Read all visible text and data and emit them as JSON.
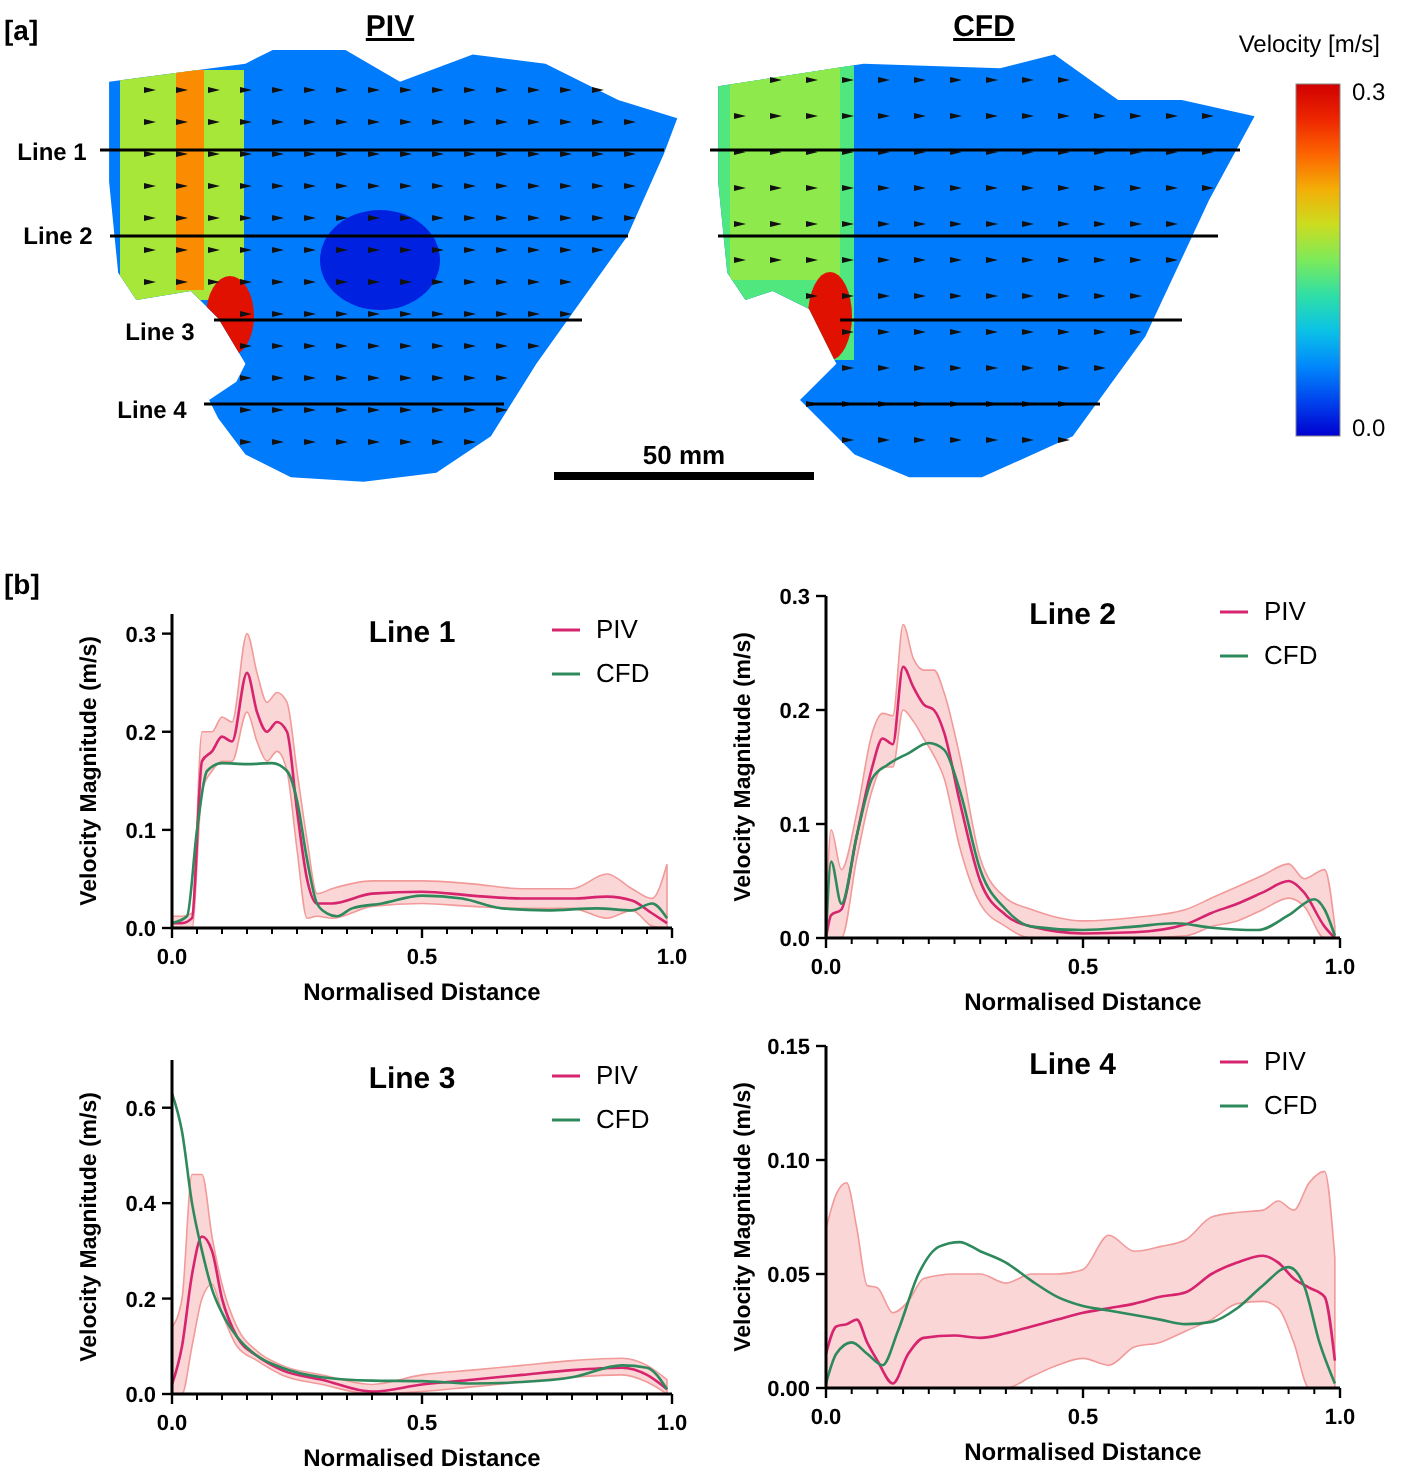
{
  "chart_data": [
    {
      "type": "other",
      "annotations": [
        "[a]",
        "PIV",
        "CFD",
        "Line 1",
        "Line 2",
        "Line 3",
        "Line 4",
        "50 mm",
        "Velocity [m/s]",
        "0.3",
        "0.0"
      ]
    },
    {
      "type": "line",
      "title": "Line 1",
      "xlabel": "Normalised Distance",
      "ylabel": "Velocity Magnitude (m/s)",
      "annotations": [
        "[b]"
      ],
      "legend": "top right",
      "xlim": [
        0,
        1
      ],
      "ylim": [
        0,
        0.32
      ],
      "xticks": [
        {
          "value": 0,
          "label": "0.0"
        },
        {
          "value": 0.5,
          "label": "0.5"
        },
        {
          "value": 1,
          "label": "1.0"
        }
      ],
      "yticks": [
        {
          "value": 0,
          "label": "0.0"
        },
        0.1,
        0.2,
        0.3
      ],
      "series": [
        {
          "name": "PIV",
          "color": "#d6246e",
          "x": [
            0,
            0.02,
            0.04,
            0.06,
            0.08,
            0.1,
            0.12,
            0.15,
            0.17,
            0.19,
            0.21,
            0.23,
            0.25,
            0.27,
            0.29,
            0.32,
            0.4,
            0.5,
            0.6,
            0.7,
            0.8,
            0.87,
            0.92,
            0.96,
            0.99
          ],
          "values": [
            0.005,
            0.005,
            0.01,
            0.17,
            0.18,
            0.195,
            0.19,
            0.26,
            0.22,
            0.2,
            0.21,
            0.2,
            0.12,
            0.05,
            0.025,
            0.025,
            0.035,
            0.037,
            0.033,
            0.03,
            0.03,
            0.032,
            0.028,
            0.015,
            0.005
          ],
          "upper": [
            0.012,
            0.012,
            0.015,
            0.2,
            0.2,
            0.215,
            0.21,
            0.3,
            0.26,
            0.23,
            0.24,
            0.23,
            0.16,
            0.09,
            0.035,
            0.04,
            0.048,
            0.048,
            0.045,
            0.04,
            0.04,
            0.055,
            0.04,
            0.03,
            0.065
          ],
          "lower": [
            0,
            0,
            0,
            0.14,
            0.16,
            0.17,
            0.17,
            0.22,
            0.19,
            0.17,
            0.18,
            0.16,
            0.08,
            0.01,
            0.012,
            0.01,
            0.022,
            0.025,
            0.022,
            0.02,
            0.02,
            0.01,
            0.018,
            0.002,
            0
          ]
        },
        {
          "name": "CFD",
          "color": "#2e8a5c",
          "x": [
            0,
            0.03,
            0.05,
            0.07,
            0.1,
            0.15,
            0.2,
            0.23,
            0.25,
            0.27,
            0.29,
            0.31,
            0.33,
            0.36,
            0.42,
            0.5,
            0.58,
            0.66,
            0.75,
            0.85,
            0.92,
            0.96,
            0.99
          ],
          "values": [
            0.005,
            0.012,
            0.1,
            0.16,
            0.168,
            0.167,
            0.168,
            0.16,
            0.13,
            0.07,
            0.025,
            0.015,
            0.012,
            0.02,
            0.025,
            0.033,
            0.03,
            0.02,
            0.018,
            0.02,
            0.018,
            0.025,
            0.01
          ]
        }
      ]
    },
    {
      "type": "line",
      "title": "Line 2",
      "xlabel": "Normalised Distance",
      "ylabel": "Velocity Magnitude (m/s)",
      "legend": "top right",
      "xlim": [
        0,
        1
      ],
      "ylim": [
        0,
        0.3
      ],
      "xticks": [
        {
          "value": 0,
          "label": "0.0"
        },
        {
          "value": 0.5,
          "label": "0.5"
        },
        {
          "value": 1,
          "label": "1.0"
        }
      ],
      "yticks": [
        {
          "value": 0,
          "label": "0.0"
        },
        0.1,
        0.2,
        0.3
      ],
      "series": [
        {
          "name": "PIV",
          "color": "#d6246e",
          "x": [
            0,
            0.01,
            0.03,
            0.06,
            0.09,
            0.11,
            0.13,
            0.15,
            0.17,
            0.19,
            0.21,
            0.23,
            0.26,
            0.3,
            0.35,
            0.4,
            0.5,
            0.6,
            0.7,
            0.75,
            0.8,
            0.85,
            0.9,
            0.93,
            0.97,
            0.99
          ],
          "values": [
            0,
            0.02,
            0.025,
            0.09,
            0.15,
            0.175,
            0.17,
            0.238,
            0.22,
            0.205,
            0.2,
            0.18,
            0.12,
            0.05,
            0.02,
            0.01,
            0.004,
            0.005,
            0.012,
            0.022,
            0.03,
            0.04,
            0.05,
            0.04,
            0.01,
            0
          ],
          "upper": [
            0.02,
            0.095,
            0.06,
            0.11,
            0.18,
            0.197,
            0.195,
            0.275,
            0.245,
            0.235,
            0.235,
            0.215,
            0.16,
            0.07,
            0.035,
            0.025,
            0.015,
            0.018,
            0.025,
            0.035,
            0.045,
            0.055,
            0.065,
            0.052,
            0.06,
            0.01
          ],
          "lower": [
            0,
            0,
            0,
            0.07,
            0.13,
            0.15,
            0.15,
            0.2,
            0.19,
            0.175,
            0.16,
            0.14,
            0.08,
            0.03,
            0.01,
            0,
            0,
            0,
            0.002,
            0.01,
            0.015,
            0.025,
            0.035,
            0.028,
            0,
            0
          ]
        },
        {
          "name": "CFD",
          "color": "#2e8a5c",
          "x": [
            0,
            0.01,
            0.03,
            0.06,
            0.09,
            0.12,
            0.16,
            0.2,
            0.23,
            0.26,
            0.3,
            0.35,
            0.4,
            0.5,
            0.6,
            0.68,
            0.75,
            0.84,
            0.9,
            0.95,
            0.97,
            0.99
          ],
          "values": [
            0,
            0.067,
            0.03,
            0.09,
            0.14,
            0.152,
            0.162,
            0.171,
            0.165,
            0.13,
            0.06,
            0.025,
            0.01,
            0.007,
            0.01,
            0.013,
            0.009,
            0.007,
            0.02,
            0.034,
            0.025,
            0.002
          ]
        }
      ]
    },
    {
      "type": "line",
      "title": "Line 3",
      "xlabel": "Normalised Distance",
      "ylabel": "Velocity Magnitude (m/s)",
      "legend": "top right",
      "xlim": [
        0,
        1
      ],
      "ylim": [
        0,
        0.7
      ],
      "xticks": [
        {
          "value": 0,
          "label": "0.0"
        },
        {
          "value": 0.5,
          "label": "0.5"
        },
        {
          "value": 1,
          "label": "1.0"
        }
      ],
      "yticks": [
        {
          "value": 0,
          "label": "0.0"
        },
        0.2,
        0.4,
        0.6
      ],
      "series": [
        {
          "name": "PIV",
          "color": "#d6246e",
          "x": [
            0,
            0.02,
            0.04,
            0.06,
            0.08,
            0.1,
            0.13,
            0.17,
            0.22,
            0.3,
            0.4,
            0.5,
            0.6,
            0.7,
            0.8,
            0.9,
            0.95,
            0.99
          ],
          "values": [
            0.02,
            0.1,
            0.25,
            0.33,
            0.3,
            0.2,
            0.12,
            0.08,
            0.05,
            0.03,
            0.005,
            0.02,
            0.03,
            0.04,
            0.05,
            0.055,
            0.04,
            0.01
          ],
          "upper": [
            0.14,
            0.2,
            0.46,
            0.46,
            0.33,
            0.23,
            0.14,
            0.09,
            0.06,
            0.04,
            0.02,
            0.04,
            0.05,
            0.06,
            0.07,
            0.075,
            0.06,
            0.03
          ],
          "lower": [
            0,
            0,
            0.1,
            0.2,
            0.23,
            0.17,
            0.1,
            0.07,
            0.04,
            0.02,
            0,
            0.005,
            0.015,
            0.025,
            0.035,
            0.04,
            0.025,
            0
          ]
        },
        {
          "name": "CFD",
          "color": "#2e8a5c",
          "x": [
            0,
            0.02,
            0.04,
            0.06,
            0.08,
            0.1,
            0.13,
            0.17,
            0.22,
            0.3,
            0.4,
            0.5,
            0.6,
            0.7,
            0.8,
            0.9,
            0.95,
            0.99
          ],
          "values": [
            0.63,
            0.55,
            0.4,
            0.3,
            0.22,
            0.17,
            0.12,
            0.08,
            0.055,
            0.035,
            0.028,
            0.027,
            0.022,
            0.025,
            0.035,
            0.06,
            0.055,
            0.01
          ]
        }
      ]
    },
    {
      "type": "line",
      "title": "Line 4",
      "xlabel": "Normalised Distance",
      "ylabel": "Velocity Magnitude (m/s)",
      "legend": "top right",
      "xlim": [
        0,
        1
      ],
      "ylim": [
        0,
        0.15
      ],
      "xticks": [
        {
          "value": 0,
          "label": "0.0"
        },
        {
          "value": 0.5,
          "label": "0.5"
        },
        {
          "value": 1,
          "label": "1.0"
        }
      ],
      "yticks": [
        {
          "value": 0,
          "label": "0.00"
        },
        {
          "value": 0.05,
          "label": "0.05"
        },
        {
          "value": 0.1,
          "label": "0.10"
        },
        {
          "value": 0.15,
          "label": "0.15"
        }
      ],
      "series": [
        {
          "name": "PIV",
          "color": "#d6246e",
          "x": [
            0,
            0.02,
            0.04,
            0.06,
            0.08,
            0.1,
            0.13,
            0.16,
            0.19,
            0.25,
            0.3,
            0.35,
            0.4,
            0.45,
            0.5,
            0.55,
            0.6,
            0.65,
            0.7,
            0.75,
            0.8,
            0.85,
            0.88,
            0.91,
            0.94,
            0.97,
            0.99
          ],
          "values": [
            0.015,
            0.027,
            0.028,
            0.03,
            0.02,
            0.012,
            0.002,
            0.015,
            0.022,
            0.023,
            0.022,
            0.024,
            0.027,
            0.03,
            0.033,
            0.035,
            0.037,
            0.04,
            0.042,
            0.05,
            0.055,
            0.058,
            0.055,
            0.048,
            0.044,
            0.04,
            0.012
          ],
          "upper": [
            0.07,
            0.085,
            0.09,
            0.07,
            0.045,
            0.044,
            0.033,
            0.038,
            0.048,
            0.05,
            0.05,
            0.046,
            0.05,
            0.05,
            0.052,
            0.067,
            0.06,
            0.062,
            0.065,
            0.075,
            0.077,
            0.078,
            0.082,
            0.078,
            0.09,
            0.095,
            0.057
          ],
          "lower": [
            0,
            0,
            0,
            0,
            0,
            0,
            0,
            0,
            0,
            0,
            0,
            0,
            0.005,
            0.01,
            0.013,
            0.01,
            0.018,
            0.02,
            0.025,
            0.03,
            0.037,
            0.038,
            0.035,
            0.02,
            0,
            0,
            0
          ]
        },
        {
          "name": "CFD",
          "color": "#2e8a5c",
          "x": [
            0,
            0.02,
            0.05,
            0.08,
            0.11,
            0.14,
            0.18,
            0.22,
            0.26,
            0.3,
            0.35,
            0.4,
            0.45,
            0.5,
            0.55,
            0.6,
            0.65,
            0.7,
            0.75,
            0.8,
            0.85,
            0.9,
            0.93,
            0.96,
            0.99
          ],
          "values": [
            0.002,
            0.015,
            0.02,
            0.015,
            0.01,
            0.025,
            0.05,
            0.062,
            0.064,
            0.06,
            0.055,
            0.047,
            0.04,
            0.036,
            0.034,
            0.032,
            0.03,
            0.028,
            0.029,
            0.035,
            0.045,
            0.053,
            0.045,
            0.02,
            0.002
          ]
        }
      ]
    }
  ]
}
